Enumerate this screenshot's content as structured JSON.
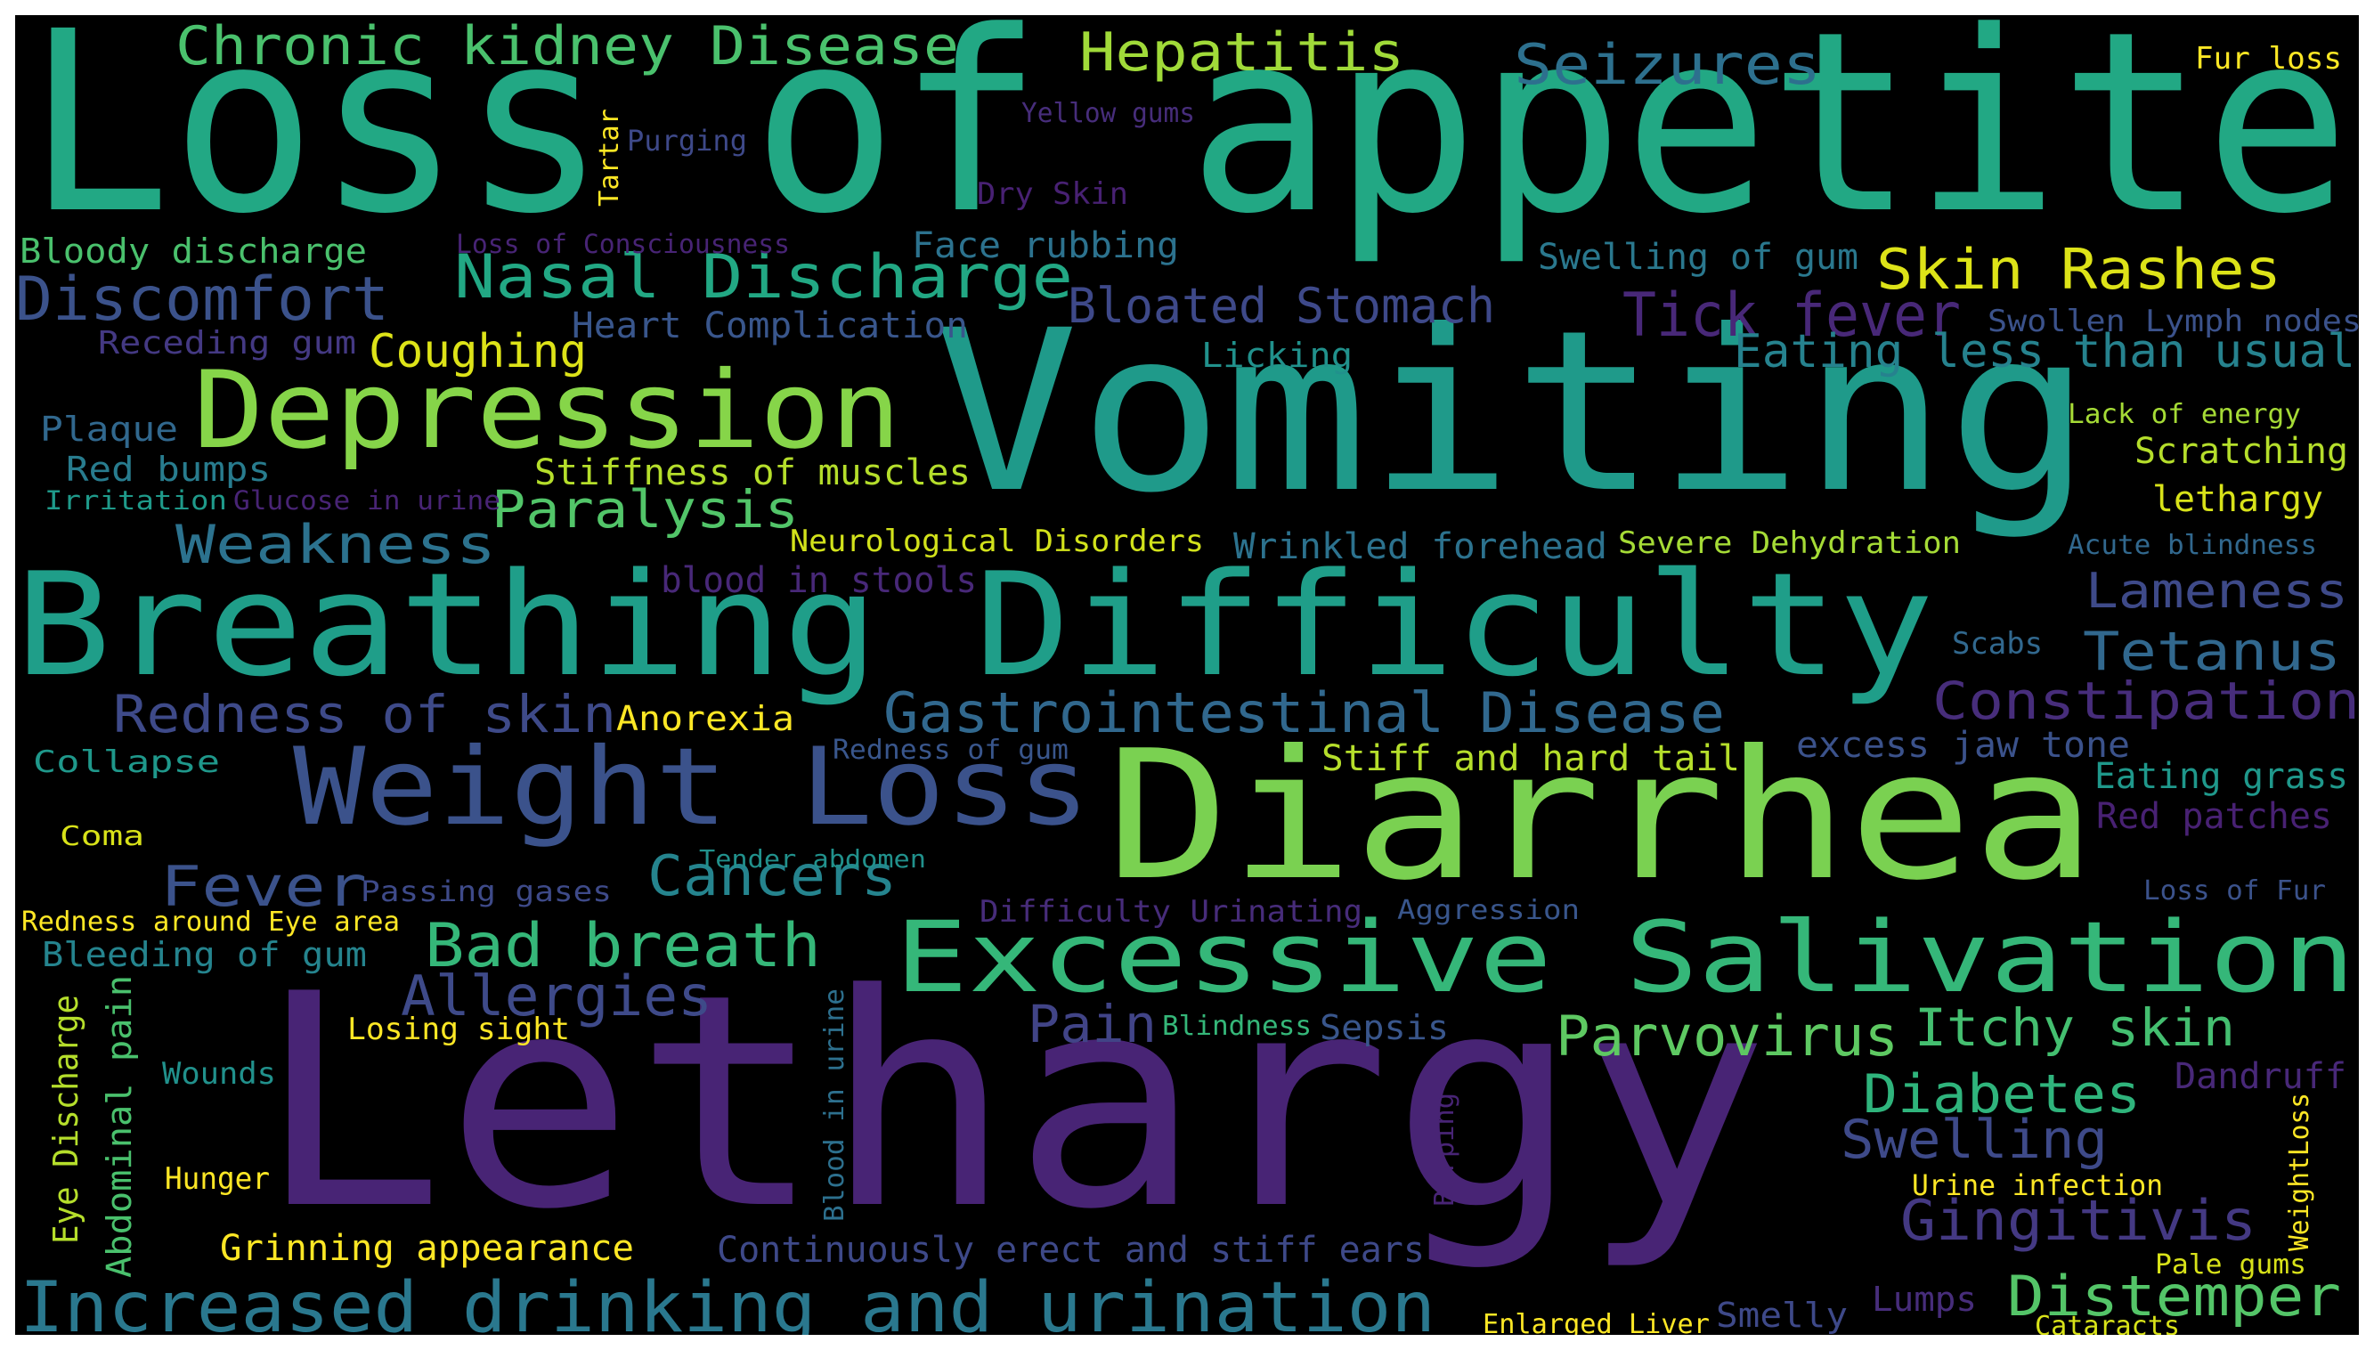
{
  "background": "#000000",
  "frame_color": "#ffffff",
  "palette": "viridis",
  "words": [
    {
      "text": "Loss of appetite",
      "color": "#22a884"
    },
    {
      "text": "Vomiting",
      "color": "#1f9a8a"
    },
    {
      "text": "Lethargy",
      "color": "#482475"
    },
    {
      "text": "Diarrhea",
      "color": "#7ad151"
    },
    {
      "text": "Breathing Difficulty",
      "color": "#1f9e89"
    },
    {
      "text": "Weight Loss",
      "color": "#3b528b"
    },
    {
      "text": "Excessive Salivation",
      "color": "#35b779"
    },
    {
      "text": "Depression",
      "color": "#86d549"
    },
    {
      "text": "Increased drinking and urination",
      "color": "#2a788e"
    },
    {
      "text": "Chronic kidney Disease",
      "color": "#4ac16d"
    },
    {
      "text": "Hepatitis",
      "color": "#a0da39"
    },
    {
      "text": "Seizures",
      "color": "#2d708e"
    },
    {
      "text": "Nasal Discharge",
      "color": "#22a884"
    },
    {
      "text": "Skin Rashes",
      "color": "#dde318"
    },
    {
      "text": "Discomfort",
      "color": "#3b528b"
    },
    {
      "text": "Tick fever",
      "color": "#482878"
    },
    {
      "text": "Bloated Stomach",
      "color": "#3e4989"
    },
    {
      "text": "Eating less than usual",
      "color": "#26828e"
    },
    {
      "text": "Coughing",
      "color": "#dde318"
    },
    {
      "text": "Gastrointestinal Disease",
      "color": "#31688e"
    },
    {
      "text": "Redness of skin",
      "color": "#3e4a89"
    },
    {
      "text": "Anorexia",
      "color": "#fde725"
    },
    {
      "text": "Weakness",
      "color": "#2c728e"
    },
    {
      "text": "Paralysis",
      "color": "#52c569"
    },
    {
      "text": "Lameness",
      "color": "#3e4a89"
    },
    {
      "text": "Tetanus",
      "color": "#31688e"
    },
    {
      "text": "Constipation",
      "color": "#472d7b"
    },
    {
      "text": "Fever",
      "color": "#3b528b"
    },
    {
      "text": "Cancers",
      "color": "#25848e"
    },
    {
      "text": "Bad breath",
      "color": "#35b779"
    },
    {
      "text": "Allergies",
      "color": "#3e4a89"
    },
    {
      "text": "Parvovirus",
      "color": "#5ec962"
    },
    {
      "text": "Itchy skin",
      "color": "#44bf70"
    },
    {
      "text": "Pain",
      "color": "#414487"
    },
    {
      "text": "Diabetes",
      "color": "#2fb47c"
    },
    {
      "text": "Swelling",
      "color": "#3e4a89"
    },
    {
      "text": "Gingitivis",
      "color": "#443983"
    },
    {
      "text": "Distemper",
      "color": "#54c568"
    },
    {
      "text": "Stiff and hard tail",
      "color": "#b5de2b"
    },
    {
      "text": "excess jaw tone",
      "color": "#3b528b"
    },
    {
      "text": "Eating grass",
      "color": "#1f988b"
    },
    {
      "text": "Red patches",
      "color": "#482173"
    },
    {
      "text": "Continuously erect and stiff ears",
      "color": "#3e4989"
    },
    {
      "text": "Grinning appearance",
      "color": "#fde725"
    },
    {
      "text": "Stiffness of muscles",
      "color": "#b5de2b"
    },
    {
      "text": "Neurological Disorders",
      "color": "#d2e21b"
    },
    {
      "text": "Wrinkled forehead",
      "color": "#2c728e"
    },
    {
      "text": "Severe Dehydration",
      "color": "#a5db36"
    },
    {
      "text": "Heart Complication",
      "color": "#39568c"
    },
    {
      "text": "Face rubbing",
      "color": "#2c728e"
    },
    {
      "text": "Swelling of gum",
      "color": "#2a788e"
    },
    {
      "text": "Swollen Lymph nodes",
      "color": "#3b528b"
    },
    {
      "text": "Licking",
      "color": "#21918c"
    },
    {
      "text": "Receding gum",
      "color": "#443983"
    },
    {
      "text": "Bloody discharge",
      "color": "#4ac16d"
    },
    {
      "text": "Plaque",
      "color": "#31688e"
    },
    {
      "text": "Red bumps",
      "color": "#287c8e"
    },
    {
      "text": "Irritation",
      "color": "#1f9a8a"
    },
    {
      "text": "Glucose in urine",
      "color": "#482475"
    },
    {
      "text": "blood in stools",
      "color": "#482878"
    },
    {
      "text": "Collapse",
      "color": "#1f988b"
    },
    {
      "text": "Coma",
      "color": "#d8e219"
    },
    {
      "text": "Redness around Eye area",
      "color": "#fde725"
    },
    {
      "text": "Bleeding of gum",
      "color": "#25848e"
    },
    {
      "text": "Losing sight",
      "color": "#fde725"
    },
    {
      "text": "Wounds",
      "color": "#21918c"
    },
    {
      "text": "Hunger",
      "color": "#fde725"
    },
    {
      "text": "Passing gases",
      "color": "#3e4a89"
    },
    {
      "text": "Tender abdomen",
      "color": "#21918c"
    },
    {
      "text": "Difficulty Urinating",
      "color": "#472c7a"
    },
    {
      "text": "Aggression",
      "color": "#39568c"
    },
    {
      "text": "Redness of gum",
      "color": "#39568c"
    },
    {
      "text": "Loss of Consciousness",
      "color": "#482475"
    },
    {
      "text": "Purging",
      "color": "#3e4989"
    },
    {
      "text": "Yellow gums",
      "color": "#472d7b"
    },
    {
      "text": "Dry Skin",
      "color": "#482173"
    },
    {
      "text": "Fur loss",
      "color": "#fde725"
    },
    {
      "text": "Lack of energy",
      "color": "#a5db36"
    },
    {
      "text": "Scratching",
      "color": "#b5de2b"
    },
    {
      "text": "lethargy",
      "color": "#d8e219"
    },
    {
      "text": "Acute blindness",
      "color": "#31688e"
    },
    {
      "text": "Scabs",
      "color": "#31688e"
    },
    {
      "text": "Loss of Fur",
      "color": "#3b528b"
    },
    {
      "text": "Dandruff",
      "color": "#482878"
    },
    {
      "text": "Blindness",
      "color": "#35b779"
    },
    {
      "text": "Sepsis",
      "color": "#39568c"
    },
    {
      "text": "Urine infection",
      "color": "#fde725"
    },
    {
      "text": "Pale gums",
      "color": "#d8e219"
    },
    {
      "text": "Lumps",
      "color": "#472d7b"
    },
    {
      "text": "Smelly",
      "color": "#3e4989"
    },
    {
      "text": "Enlarged Liver",
      "color": "#fde725"
    },
    {
      "text": "Cataracts",
      "color": "#d8e219"
    },
    {
      "text": "Tartar",
      "color": "#fde725"
    },
    {
      "text": "Eye Discharge",
      "color": "#b5de2b"
    },
    {
      "text": "Abdominal pain",
      "color": "#4ac16d"
    },
    {
      "text": "Blood in urine",
      "color": "#2d708e"
    },
    {
      "text": "Burping",
      "color": "#482475"
    },
    {
      "text": "WeightLoss",
      "color": "#fde725"
    }
  ]
}
